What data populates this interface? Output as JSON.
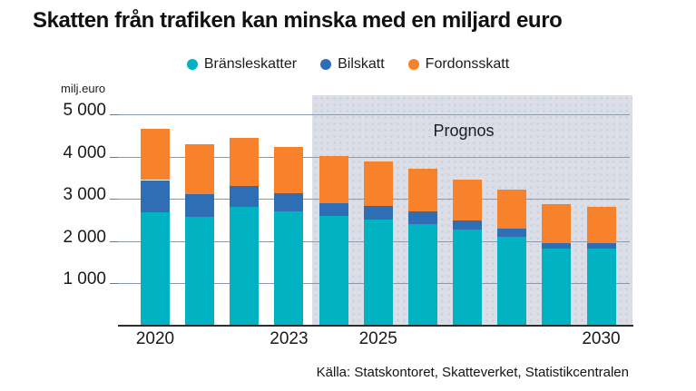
{
  "colors": {
    "bransleskatter": "#00b2c2",
    "bilskatt": "#2f6eb5",
    "fordonsskatt": "#f8812c",
    "forecast_band": "#dbdde7",
    "gridline": "#8d99a9",
    "axis_line": "#2d2d2d"
  },
  "chart_data": {
    "type": "bar",
    "stacked": true,
    "title": "Skatten från trafiken kan minska med en miljard euro",
    "ylabel": "milj.euro",
    "xlabel": "",
    "legend_position": "top",
    "grid": true,
    "forecast_label": "Prognos",
    "forecast_start_category": 2024,
    "categories": [
      2020,
      2021,
      2022,
      2023,
      2024,
      2025,
      2026,
      2027,
      2028,
      2029,
      2030
    ],
    "x_tick_labels": [
      "2020",
      "2023",
      "2025",
      "2030"
    ],
    "ylim": [
      0,
      5000
    ],
    "y_ticks": [
      1000,
      2000,
      3000,
      4000,
      5000
    ],
    "y_tick_labels": [
      "1 000",
      "2 000",
      "3 000",
      "4 000",
      "5 000"
    ],
    "series": [
      {
        "name": "Bränsleskatter",
        "color": "#00b2c2",
        "values": [
          2660,
          2550,
          2790,
          2690,
          2570,
          2500,
          2390,
          2250,
          2080,
          1815,
          1800
        ]
      },
      {
        "name": "Bilskatt",
        "color": "#2f6eb5",
        "values": [
          770,
          550,
          490,
          420,
          320,
          320,
          290,
          230,
          205,
          125,
          125
        ]
      },
      {
        "name": "Fordonsskatt",
        "color": "#f8812c",
        "values": [
          1220,
          1175,
          1150,
          1110,
          1115,
          1055,
          1025,
          970,
          930,
          930,
          880
        ]
      }
    ],
    "totals": [
      4650,
      4275,
      4430,
      4220,
      4005,
      3875,
      3705,
      3450,
      3215,
      2870,
      2805
    ],
    "source": "Källa: Statskontoret, Skatteverket, Statistikcentralen"
  }
}
